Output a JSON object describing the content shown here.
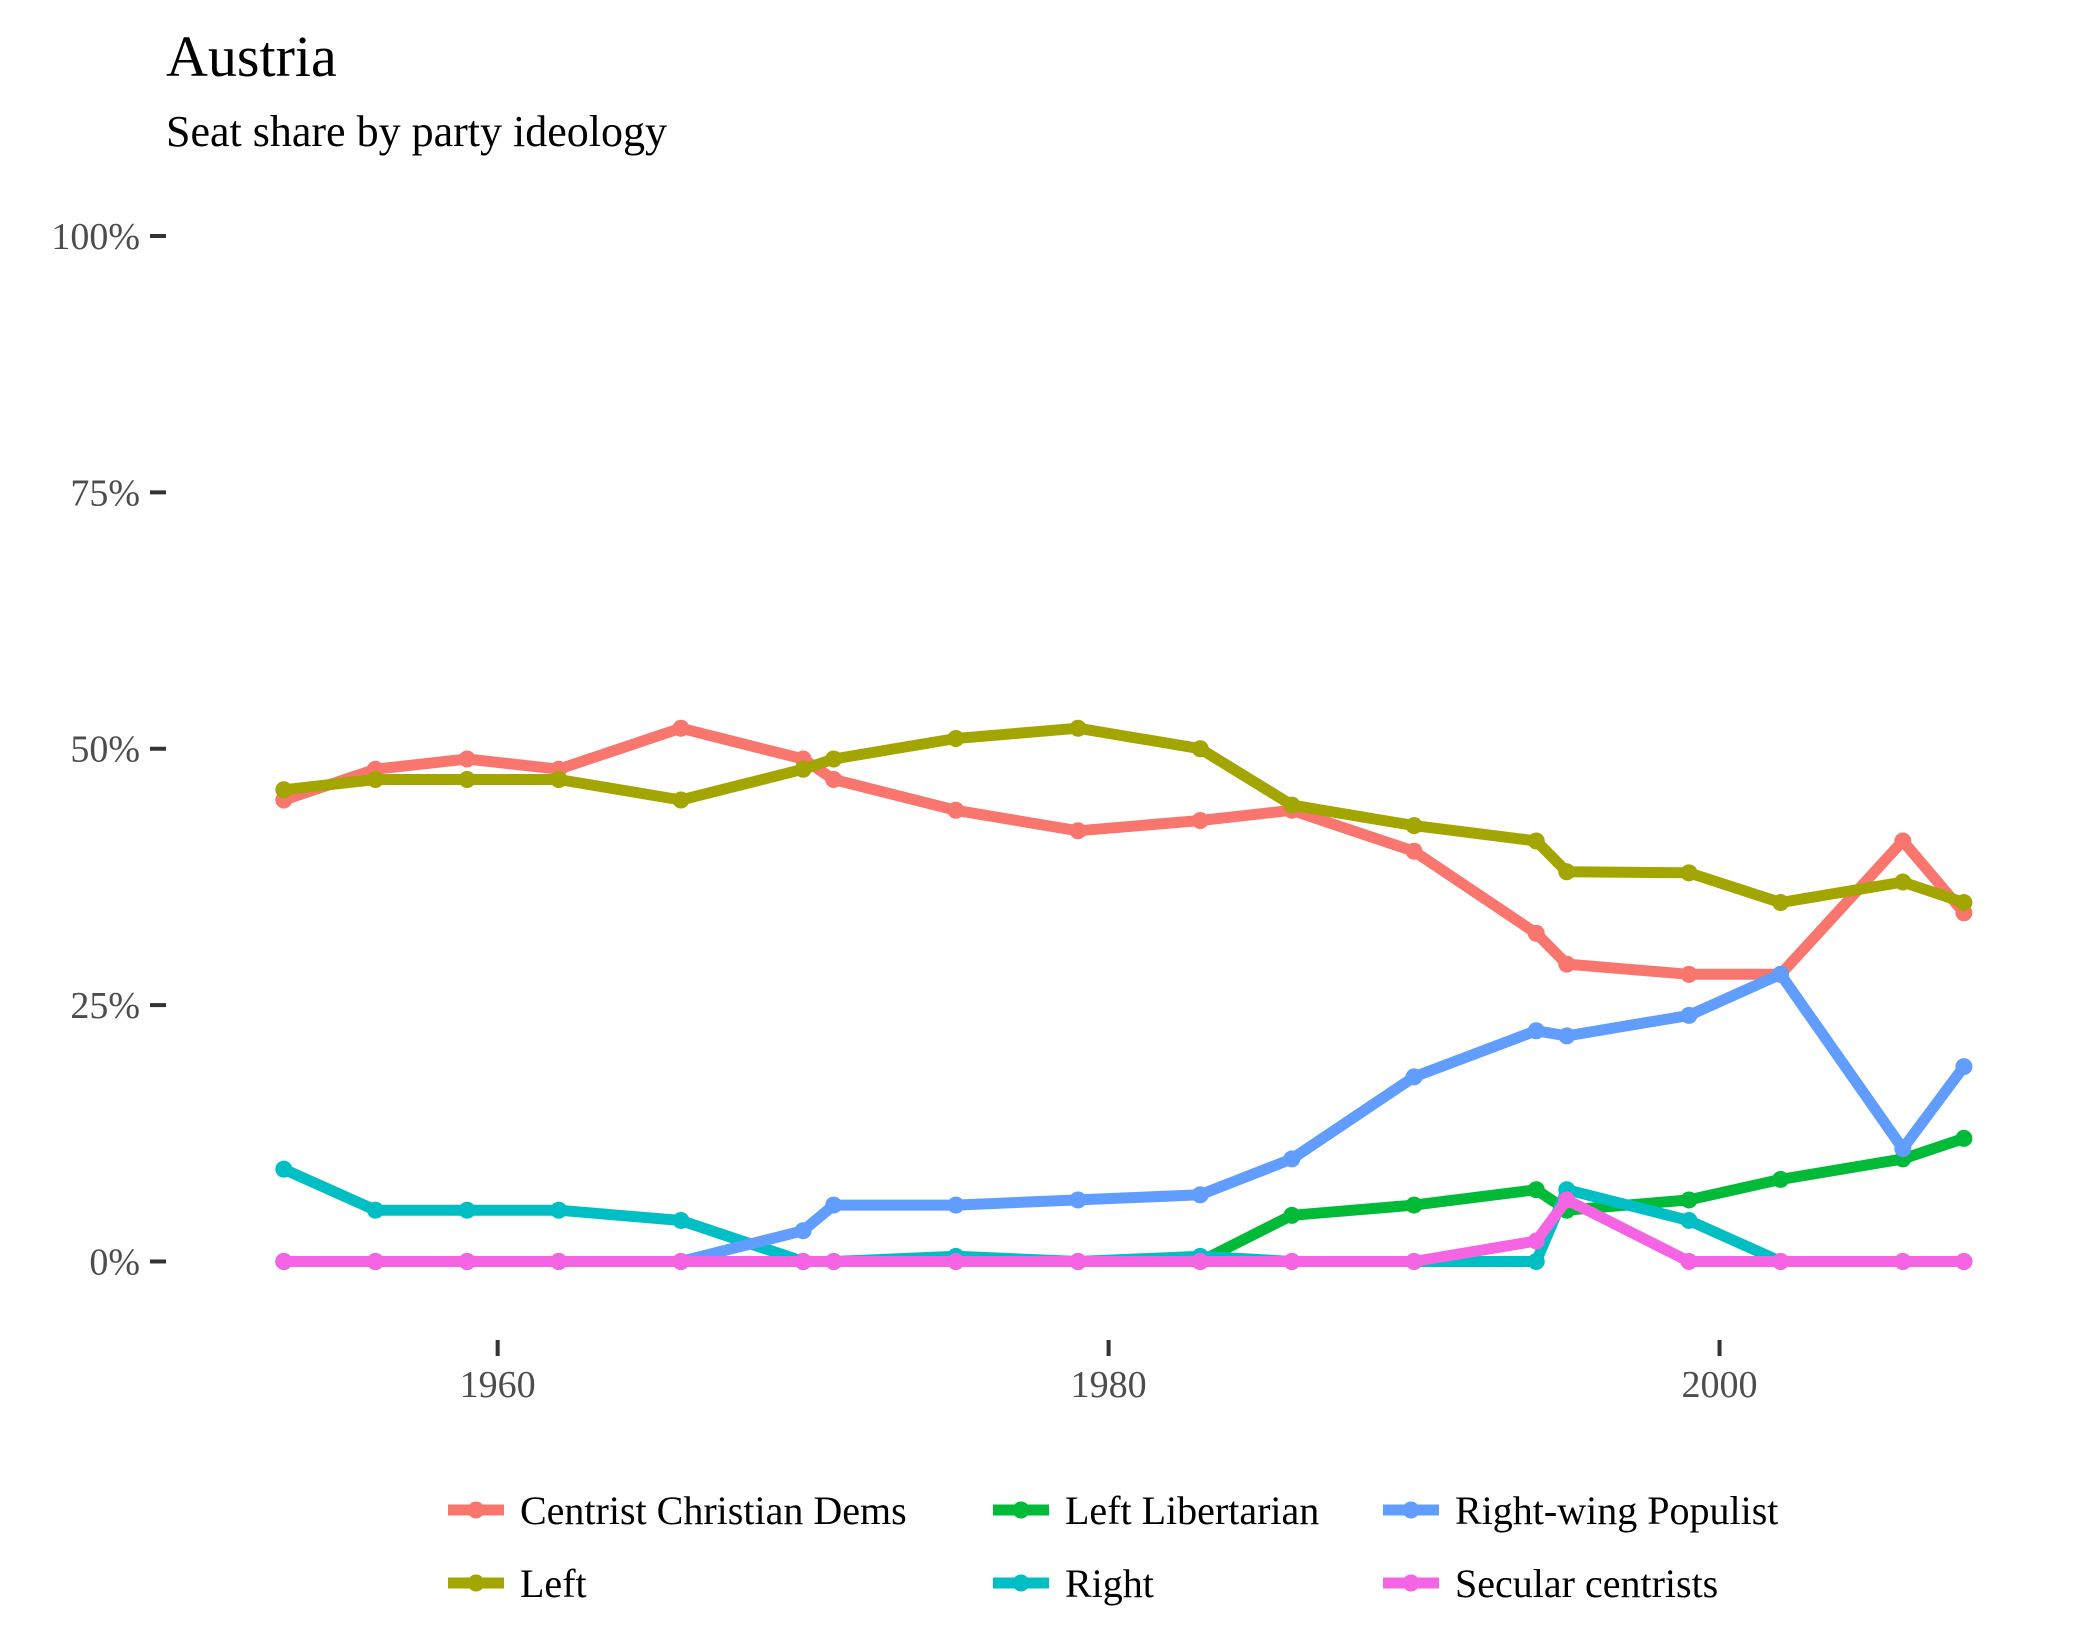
{
  "chart_data": {
    "type": "line",
    "title": "Austria",
    "subtitle": "Seat share by party ideology",
    "xlim": [
      1951.5,
      2010
    ],
    "ylim": [
      -0.06,
      1.0
    ],
    "x_ticks": [
      1960,
      1980,
      2000
    ],
    "y_ticks": [
      0,
      0.25,
      0.5,
      0.75,
      1.0
    ],
    "y_tick_labels": [
      "0%",
      "25%",
      "50%",
      "75%",
      "100%"
    ],
    "grid": false,
    "legend_position": "bottom",
    "series": [
      {
        "name": "Centrist Christian Dems",
        "color": "#F8766D",
        "x": [
          1953,
          1956,
          1959,
          1962,
          1966,
          1970,
          1971,
          1975,
          1979,
          1983,
          1986,
          1990,
          1994,
          1995,
          1999,
          2002,
          2006,
          2008
        ],
        "y": [
          0.45,
          0.48,
          0.49,
          0.48,
          0.52,
          0.49,
          0.47,
          0.44,
          0.42,
          0.43,
          0.44,
          0.4,
          0.32,
          0.29,
          0.28,
          0.28,
          0.41,
          0.34
        ]
      },
      {
        "name": "Left",
        "color": "#A3A500",
        "x": [
          1953,
          1956,
          1959,
          1962,
          1966,
          1970,
          1971,
          1975,
          1979,
          1983,
          1986,
          1990,
          1994,
          1995,
          1999,
          2002,
          2006,
          2008
        ],
        "y": [
          0.46,
          0.47,
          0.47,
          0.47,
          0.45,
          0.48,
          0.49,
          0.51,
          0.52,
          0.5,
          0.445,
          0.425,
          0.41,
          0.38,
          0.379,
          0.35,
          0.37,
          0.35
        ]
      },
      {
        "name": "Left Libertarian",
        "color": "#00BA38",
        "x": [
          1953,
          1956,
          1959,
          1962,
          1966,
          1970,
          1971,
          1975,
          1979,
          1983,
          1986,
          1990,
          1994,
          1995,
          1999,
          2002,
          2006,
          2008
        ],
        "y": [
          0,
          0,
          0,
          0,
          0,
          0,
          0,
          0,
          0,
          0,
          0.045,
          0.055,
          0.07,
          0.05,
          0.06,
          0.08,
          0.1,
          0.12
        ]
      },
      {
        "name": "Right",
        "color": "#00BFC4",
        "x": [
          1953,
          1956,
          1959,
          1962,
          1966,
          1970,
          1971,
          1975,
          1979,
          1983,
          1986,
          1990,
          1994,
          1995,
          1999,
          2002,
          2006,
          2008
        ],
        "y": [
          0.09,
          0.05,
          0.05,
          0.05,
          0.04,
          0,
          0,
          0.005,
          0,
          0.005,
          0,
          0,
          0,
          0.07,
          0.04,
          0,
          0,
          0
        ]
      },
      {
        "name": "Right-wing Populist",
        "color": "#619CFF",
        "x": [
          1953,
          1956,
          1959,
          1962,
          1966,
          1970,
          1971,
          1975,
          1979,
          1983,
          1986,
          1990,
          1994,
          1995,
          1999,
          2002,
          2006,
          2008
        ],
        "y": [
          0,
          0,
          0,
          0,
          0,
          0.03,
          0.055,
          0.055,
          0.06,
          0.065,
          0.1,
          0.18,
          0.225,
          0.22,
          0.24,
          0.28,
          0.11,
          0.19
        ]
      },
      {
        "name": "Secular centrists",
        "color": "#F564E3",
        "x": [
          1953,
          1956,
          1959,
          1962,
          1966,
          1970,
          1971,
          1975,
          1979,
          1983,
          1986,
          1990,
          1994,
          1995,
          1999,
          2002,
          2006,
          2008
        ],
        "y": [
          0,
          0,
          0,
          0,
          0,
          0,
          0,
          0,
          0,
          0,
          0,
          0,
          0.02,
          0.06,
          0,
          0,
          0,
          0
        ]
      }
    ],
    "legend_order": [
      "Centrist Christian Dems",
      "Left Libertarian",
      "Right-wing Populist",
      "Left",
      "Right",
      "Secular centrists"
    ]
  }
}
